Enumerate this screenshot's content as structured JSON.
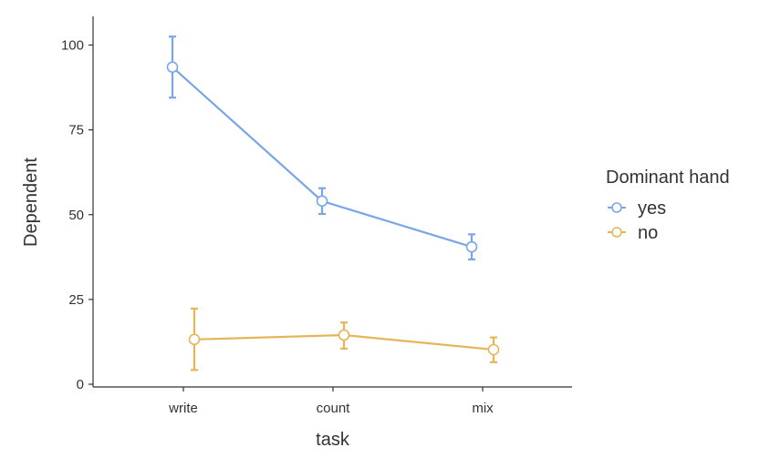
{
  "chart_data": {
    "type": "line",
    "xlabel": "task",
    "ylabel": "Dependent",
    "categories": [
      "write",
      "count",
      "mix"
    ],
    "ylim": [
      0,
      110
    ],
    "yticks": [
      0,
      25,
      50,
      75,
      100
    ],
    "grid": false,
    "legend": {
      "title": "Dominant hand",
      "placement": "right"
    },
    "error_bars": true,
    "series": [
      {
        "name": "yes",
        "color": "#7aa6e6",
        "values": [
          93.5,
          54,
          40.5
        ],
        "lower": [
          84.5,
          50.2,
          36.8
        ],
        "upper": [
          102.5,
          57.8,
          44.2
        ]
      },
      {
        "name": "no",
        "color": "#e6b55a",
        "values": [
          13.2,
          14.5,
          10.2
        ],
        "lower": [
          4.2,
          10.5,
          6.5
        ],
        "upper": [
          22.3,
          18.2,
          13.8
        ]
      }
    ]
  }
}
